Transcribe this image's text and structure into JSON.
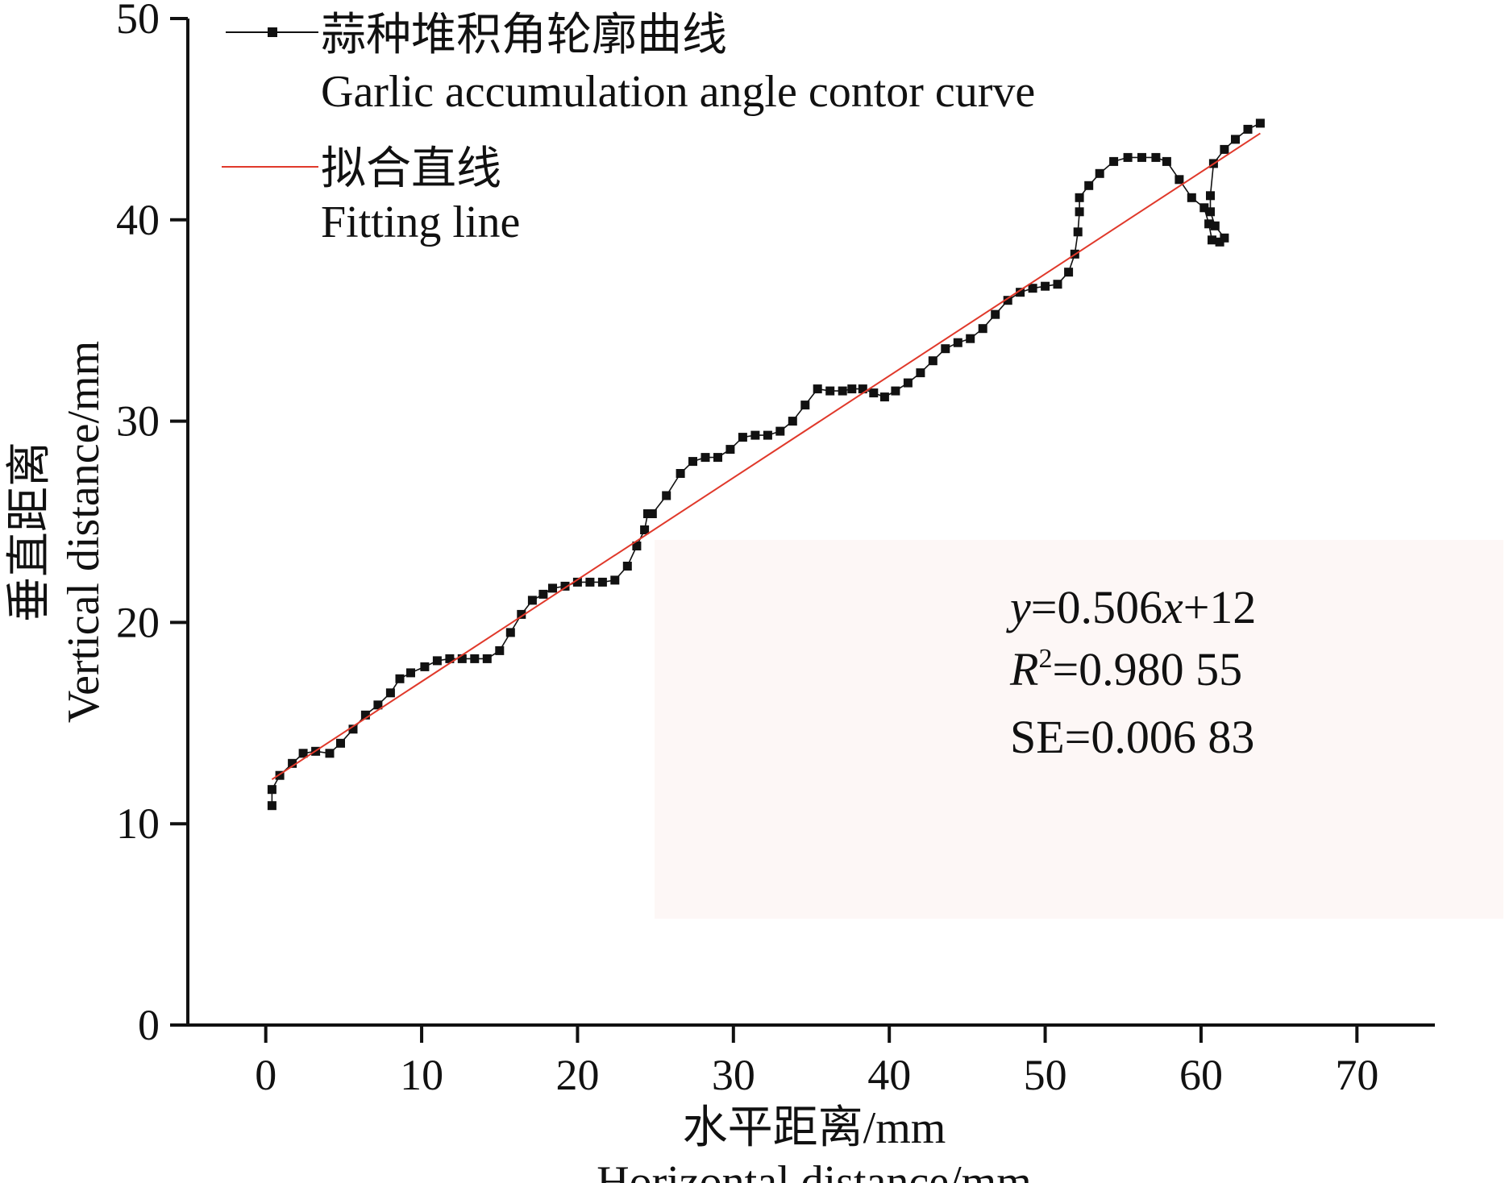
{
  "chart_data": {
    "type": "line",
    "xlabel": [
      "水平距离/mm",
      "Horizontal distance/mm"
    ],
    "ylabel": [
      "垂直距离",
      "Vertical distance/mm"
    ],
    "xlim": [
      -5,
      75
    ],
    "ylim": [
      0,
      50
    ],
    "xticks": [
      0,
      10,
      20,
      30,
      40,
      50,
      60,
      70
    ],
    "yticks": [
      0,
      10,
      20,
      30,
      40,
      50
    ],
    "grid": false,
    "legend_position": "top-left",
    "legend": [
      {
        "line1": "蒜种堆积角轮廓曲线",
        "line2": "Garlic accumulation angle contor curve",
        "color": "#111111",
        "marker": "square"
      },
      {
        "line1": "拟合直线",
        "line2": "Fitting line",
        "color": "#e0392b",
        "marker": "none"
      }
    ],
    "series": [
      {
        "name": "Garlic accumulation angle contor curve",
        "color": "#111111",
        "marker": "square",
        "x": [
          0.4,
          0.4,
          0.9,
          1.7,
          2.4,
          3.2,
          4.1,
          4.8,
          5.6,
          6.4,
          7.2,
          8.0,
          8.6,
          9.3,
          10.2,
          11.0,
          11.8,
          12.6,
          13.4,
          14.2,
          15.0,
          15.7,
          16.4,
          17.1,
          17.8,
          18.4,
          19.2,
          20.0,
          20.8,
          21.6,
          22.4,
          23.2,
          23.8,
          24.3,
          24.5,
          24.8,
          25.7,
          26.6,
          27.4,
          28.2,
          29.0,
          29.8,
          30.6,
          31.4,
          32.2,
          33.0,
          33.8,
          34.6,
          35.4,
          36.2,
          37.0,
          37.6,
          38.3,
          39.0,
          39.7,
          40.4,
          41.2,
          42.0,
          42.8,
          43.6,
          44.4,
          45.2,
          46.0,
          46.8,
          47.6,
          48.4,
          49.2,
          50.0,
          50.8,
          51.5,
          51.9,
          52.1,
          52.2,
          52.2,
          52.8,
          53.5,
          54.4,
          55.3,
          56.2,
          57.1,
          57.8,
          58.6,
          59.4,
          60.2,
          60.5,
          60.7,
          61.2,
          61.5,
          60.9,
          60.6,
          60.6,
          60.8,
          61.5,
          62.2,
          63.0,
          63.8
        ],
        "y": [
          10.9,
          11.7,
          12.4,
          13.0,
          13.5,
          13.6,
          13.5,
          14.0,
          14.7,
          15.4,
          15.9,
          16.5,
          17.2,
          17.5,
          17.8,
          18.1,
          18.2,
          18.2,
          18.2,
          18.2,
          18.6,
          19.5,
          20.4,
          21.1,
          21.4,
          21.7,
          21.8,
          22.0,
          22.0,
          22.0,
          22.1,
          22.8,
          23.8,
          24.6,
          25.4,
          25.4,
          26.3,
          27.4,
          28.0,
          28.2,
          28.2,
          28.6,
          29.2,
          29.3,
          29.3,
          29.5,
          30.0,
          30.8,
          31.6,
          31.5,
          31.5,
          31.6,
          31.6,
          31.4,
          31.2,
          31.5,
          31.9,
          32.4,
          33.0,
          33.6,
          33.9,
          34.1,
          34.6,
          35.3,
          36.0,
          36.4,
          36.6,
          36.7,
          36.8,
          37.4,
          38.3,
          39.4,
          40.4,
          41.1,
          41.7,
          42.3,
          42.9,
          43.1,
          43.1,
          43.1,
          42.9,
          42.0,
          41.1,
          40.6,
          39.8,
          39.0,
          38.9,
          39.1,
          39.7,
          40.4,
          41.2,
          42.8,
          43.5,
          44.0,
          44.5,
          44.8
        ]
      },
      {
        "name": "Fitting line",
        "color": "#e0392b",
        "marker": "none",
        "x": [
          0.4,
          63.8
        ],
        "y": [
          12.2,
          44.3
        ]
      }
    ],
    "annotation": {
      "equation": [
        "y",
        "=0.506",
        "x",
        "+12"
      ],
      "r2": [
        "R",
        "2",
        "=0.980 55"
      ],
      "se": "SE=0.006 83"
    }
  }
}
